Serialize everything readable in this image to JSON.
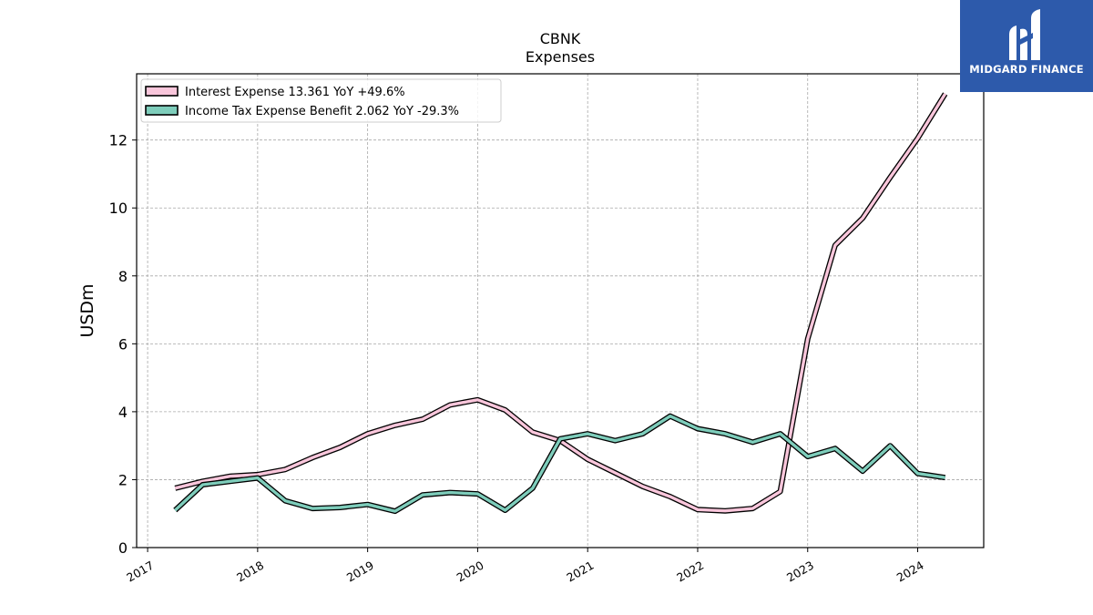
{
  "chart_data": {
    "type": "line",
    "title": "CBNK",
    "subtitle": "Expenses",
    "xlabel": "",
    "ylabel": "USDm",
    "xlim": [
      2016.9,
      2024.6
    ],
    "ylim": [
      0,
      13.95
    ],
    "x_ticks": [
      2017,
      2018,
      2019,
      2020,
      2021,
      2022,
      2023,
      2024
    ],
    "x_tick_labels": [
      "2017",
      "2018",
      "2019",
      "2020",
      "2021",
      "2022",
      "2023",
      "2024"
    ],
    "y_ticks": [
      0,
      2,
      4,
      6,
      8,
      10,
      12
    ],
    "y_tick_labels": [
      "0",
      "2",
      "4",
      "6",
      "8",
      "10",
      "12"
    ],
    "grid": true,
    "legend_position": "top-left",
    "x": [
      2017.25,
      2017.5,
      2017.75,
      2018.0,
      2018.25,
      2018.5,
      2018.75,
      2019.0,
      2019.25,
      2019.5,
      2019.75,
      2020.0,
      2020.25,
      2020.5,
      2020.75,
      2021.0,
      2021.25,
      2021.5,
      2021.75,
      2022.0,
      2022.25,
      2022.5,
      2022.75,
      2023.0,
      2023.25,
      2023.5,
      2023.75,
      2024.0,
      2024.25
    ],
    "series": [
      {
        "name": "Interest Expense",
        "legend_label": "Interest Expense  13.361 YoY +49.6%",
        "color": "#f9c6db",
        "values": [
          1.75,
          1.95,
          2.1,
          2.15,
          2.3,
          2.65,
          2.95,
          3.35,
          3.6,
          3.78,
          4.2,
          4.35,
          4.05,
          3.4,
          3.15,
          2.6,
          2.2,
          1.8,
          1.5,
          1.12,
          1.08,
          1.15,
          1.65,
          6.15,
          8.9,
          9.7,
          10.9,
          12.05,
          13.36
        ]
      },
      {
        "name": "Income Tax Expense Benefit",
        "legend_label": "Income Tax Expense Benefit  2.062 YoY -29.3%",
        "color": "#7ecdbb",
        "values": [
          1.1,
          1.85,
          1.95,
          2.05,
          1.38,
          1.15,
          1.18,
          1.27,
          1.07,
          1.55,
          1.62,
          1.58,
          1.1,
          1.75,
          3.2,
          3.35,
          3.15,
          3.35,
          3.87,
          3.5,
          3.35,
          3.1,
          3.35,
          2.68,
          2.92,
          2.25,
          3.0,
          2.18,
          2.06
        ]
      }
    ]
  },
  "logo": {
    "text": "MIDGARD FINANCE",
    "icon": "midgard-logo-icon",
    "background": "#2d5aab"
  }
}
